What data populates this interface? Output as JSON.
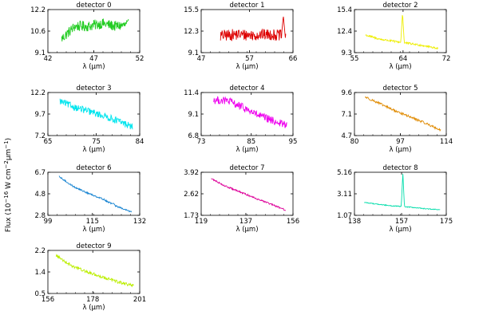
{
  "figure": {
    "ylabel": "Flux (10^-16 W cm^-2 µm^-1)",
    "ylabel_parts": {
      "base": "Flux (10",
      "exp1": "−16",
      "mid": " W cm",
      "exp2": "−2",
      "mid2": "µm",
      "exp3": "−1",
      "tail": ")"
    }
  },
  "chart_data": [
    {
      "type": "line",
      "title": "detector 0",
      "xlabel": "λ (µm)",
      "xlim": [
        42,
        52
      ],
      "ylim": [
        9.1,
        12.2
      ],
      "xticks": [
        "42",
        "47",
        "52"
      ],
      "yticks": [
        "9.1",
        "10.6",
        "12.2"
      ],
      "color": "#22cc22",
      "x_range": [
        43.5,
        50.8
      ],
      "trend": [
        10.1,
        11.0,
        11.0,
        11.2,
        11.0,
        11.1
      ],
      "noise": 0.38,
      "spikes": [],
      "series_name": ""
    },
    {
      "type": "line",
      "title": "detector 1",
      "xlabel": "λ (µm)",
      "xlim": [
        47,
        66
      ],
      "ylim": [
        9.1,
        15.5
      ],
      "xticks": [
        "47",
        "57",
        "66"
      ],
      "yticks": [
        "9.1",
        "12.3",
        "15.5"
      ],
      "color": "#dd0000",
      "x_range": [
        51.0,
        64.5
      ],
      "trend": [
        11.6,
        11.8,
        11.7,
        11.8,
        11.6
      ],
      "noise": 0.85,
      "spikes": [
        {
          "x": 64.0,
          "y": 14.6,
          "w": 0.15
        }
      ],
      "series_name": ""
    },
    {
      "type": "line",
      "title": "detector 2",
      "xlabel": "λ (µm)",
      "xlim": [
        55,
        72
      ],
      "ylim": [
        9.3,
        15.4
      ],
      "xticks": [
        "55",
        "64",
        "72"
      ],
      "yticks": [
        "9.3",
        "12.4",
        "15.4"
      ],
      "color": "#eeee00",
      "x_range": [
        57.0,
        70.5
      ],
      "trend": [
        11.8,
        11.2,
        10.9,
        10.6,
        10.3,
        9.9
      ],
      "noise": 0.14,
      "spikes": [
        {
          "x": 63.9,
          "y": 15.0,
          "w": 0.12
        }
      ],
      "series_name": ""
    },
    {
      "type": "line",
      "title": "detector 3",
      "xlabel": "λ (µm)",
      "xlim": [
        65,
        84
      ],
      "ylim": [
        7.2,
        12.2
      ],
      "xticks": [
        "65",
        "75",
        "84"
      ],
      "yticks": [
        "7.2",
        "9.7",
        "12.2"
      ],
      "color": "#00e5ee",
      "x_range": [
        67.5,
        82.5
      ],
      "trend": [
        11.2,
        10.5,
        10.0,
        9.5,
        8.9,
        8.2
      ],
      "noise": 0.4,
      "spikes": [],
      "series_name": ""
    },
    {
      "type": "line",
      "title": "detector 4",
      "xlabel": "λ (µm)",
      "xlim": [
        73,
        95
      ],
      "ylim": [
        6.8,
        11.4
      ],
      "xticks": [
        "73",
        "85",
        "95"
      ],
      "yticks": [
        "6.8",
        "9.1",
        "11.4"
      ],
      "color": "#ee00ee",
      "x_range": [
        76.0,
        93.5
      ],
      "trend": [
        10.6,
        10.5,
        9.8,
        9.0,
        8.4,
        7.9
      ],
      "noise": 0.42,
      "spikes": [],
      "series_name": ""
    },
    {
      "type": "line",
      "title": "detector 5",
      "xlabel": "λ (µm)",
      "xlim": [
        80,
        114
      ],
      "ylim": [
        4.7,
        9.6
      ],
      "xticks": [
        "80",
        "97",
        "114"
      ],
      "yticks": [
        "4.7",
        "7.1",
        "9.6"
      ],
      "color": "#e08a00",
      "x_range": [
        84.0,
        112.0
      ],
      "trend": [
        9.1,
        8.3,
        7.5,
        6.8,
        6.1,
        5.3
      ],
      "noise": 0.13,
      "spikes": [],
      "series_name": ""
    },
    {
      "type": "line",
      "title": "detector 6",
      "xlabel": "λ (µm)",
      "xlim": [
        99,
        132
      ],
      "ylim": [
        2.8,
        6.7
      ],
      "xticks": [
        "99",
        "115",
        "132"
      ],
      "yticks": [
        "2.8",
        "4.8",
        "6.7"
      ],
      "color": "#1080d0",
      "x_range": [
        103.0,
        129.0
      ],
      "trend": [
        6.3,
        5.4,
        4.8,
        4.3,
        3.6,
        3.1
      ],
      "noise": 0.07,
      "spikes": [
        {
          "x": 122.5,
          "y": 3.9,
          "w": 0.3
        }
      ],
      "series_name": ""
    },
    {
      "type": "line",
      "title": "detector 7",
      "xlabel": "λ (µm)",
      "xlim": [
        119,
        156
      ],
      "ylim": [
        1.73,
        3.92
      ],
      "xticks": [
        "119",
        "137",
        "156"
      ],
      "yticks": [
        "1.73",
        "2.62",
        "3.92"
      ],
      "color": "#dd0099",
      "x_range": [
        123.0,
        153.0
      ],
      "trend": [
        3.6,
        3.2,
        2.9,
        2.6,
        2.3,
        2.0
      ],
      "noise": 0.04,
      "spikes": [],
      "series_name": ""
    },
    {
      "type": "line",
      "title": "detector 8",
      "xlabel": "λ (µm)",
      "xlim": [
        138,
        175
      ],
      "ylim": [
        1.07,
        5.16
      ],
      "xticks": [
        "138",
        "157",
        "175"
      ],
      "yticks": [
        "1.07",
        "3.11",
        "5.16"
      ],
      "color": "#00ddaa",
      "x_range": [
        142.0,
        172.5
      ],
      "trend": [
        2.3,
        2.1,
        1.95,
        1.85,
        1.7,
        1.6
      ],
      "noise": 0.04,
      "spikes": [
        {
          "x": 157.5,
          "y": 5.1,
          "w": 0.2
        }
      ],
      "series_name": ""
    },
    {
      "type": "line",
      "title": "detector 9",
      "xlabel": "λ (µm)",
      "xlim": [
        156,
        201
      ],
      "ylim": [
        0.5,
        2.2
      ],
      "xticks": [
        "156",
        "178",
        "201"
      ],
      "yticks": [
        "0.5",
        "1.4",
        "2.2"
      ],
      "color": "#bbee00",
      "x_range": [
        160.0,
        198.0
      ],
      "trend": [
        2.0,
        1.6,
        1.35,
        1.15,
        0.95,
        0.8
      ],
      "noise": 0.06,
      "spikes": [],
      "series_name": ""
    }
  ]
}
